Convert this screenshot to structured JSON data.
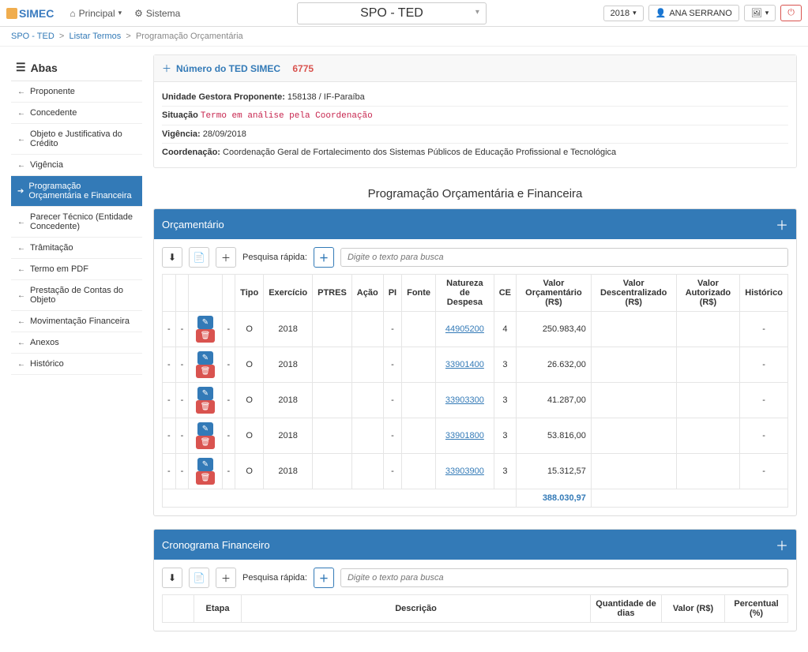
{
  "topbar": {
    "logo": "SIMEC",
    "nav": {
      "principal": "Principal",
      "sistema": "Sistema"
    },
    "title": "SPO - TED",
    "year": "2018",
    "user": "ANA SERRANO"
  },
  "breadcrumb": {
    "level1": "SPO - TED",
    "level2": "Listar Termos",
    "level3": "Programação Orçamentária"
  },
  "sidebar": {
    "title": "Abas",
    "items": [
      {
        "label": "Proponente",
        "active": false
      },
      {
        "label": "Concedente",
        "active": false
      },
      {
        "label": "Objeto e Justificativa do Crédito",
        "active": false
      },
      {
        "label": "Vigência",
        "active": false
      },
      {
        "label": "Programação Orçamentária e Financeira",
        "active": true
      },
      {
        "label": "Parecer Técnico (Entidade Concedente)",
        "active": false
      },
      {
        "label": "Trâmitação",
        "active": false
      },
      {
        "label": "Termo em PDF",
        "active": false
      },
      {
        "label": "Prestação de Contas do Objeto",
        "active": false
      },
      {
        "label": "Movimentação Financeira",
        "active": false
      },
      {
        "label": "Anexos",
        "active": false
      },
      {
        "label": "Histórico",
        "active": false
      }
    ]
  },
  "info": {
    "ted_label": "Número do TED SIMEC",
    "ted_number": "6775",
    "unidade_label": "Unidade Gestora Proponente:",
    "unidade_value": "158138 / IF-Paraíba",
    "situacao_label": "Situação",
    "situacao_value": "Termo em análise pela Coordenação",
    "vigencia_label": "Vigência:",
    "vigencia_value": "28/09/2018",
    "coord_label": "Coordenação:",
    "coord_value": "Coordenação Geral de Fortalecimento dos Sistemas Públicos de Educação Profissional e Tecnológica"
  },
  "section_title": "Programação Orçamentária e Financeira",
  "orcamentario": {
    "panel_title": "Orçamentário",
    "search_label": "Pesquisa rápida:",
    "search_placeholder": "Digite o texto para busca",
    "headers": {
      "tipo": "Tipo",
      "exercicio": "Exercício",
      "ptres": "PTRES",
      "acao": "Ação",
      "pi": "PI",
      "fonte": "Fonte",
      "natureza": "Natureza de Despesa",
      "ce": "CE",
      "valor_orc": "Valor Orçamentário (R$)",
      "valor_desc": "Valor Descentralizado (R$)",
      "valor_aut": "Valor Autorizado (R$)",
      "historico": "Histórico"
    },
    "rows": [
      {
        "tipo": "O",
        "exercicio": "2018",
        "natureza": "44905200",
        "ce": "4",
        "valor": "250.983,40"
      },
      {
        "tipo": "O",
        "exercicio": "2018",
        "natureza": "33901400",
        "ce": "3",
        "valor": "26.632,00"
      },
      {
        "tipo": "O",
        "exercicio": "2018",
        "natureza": "33903300",
        "ce": "3",
        "valor": "41.287,00"
      },
      {
        "tipo": "O",
        "exercicio": "2018",
        "natureza": "33901800",
        "ce": "3",
        "valor": "53.816,00"
      },
      {
        "tipo": "O",
        "exercicio": "2018",
        "natureza": "33903900",
        "ce": "3",
        "valor": "15.312,57"
      }
    ],
    "total": "388.030,97"
  },
  "cronograma": {
    "panel_title": "Cronograma Financeiro",
    "search_label": "Pesquisa rápida:",
    "search_placeholder": "Digite o texto para busca",
    "headers": {
      "etapa": "Etapa",
      "descricao": "Descrição",
      "qtd_dias": "Quantidade de dias",
      "valor": "Valor (R$)",
      "percentual": "Percentual (%)"
    }
  },
  "colors": {
    "primary": "#337ab7",
    "danger": "#d9534f",
    "warning": "#f0ad4e",
    "border": "#e5e5e5",
    "text": "#333333",
    "muted": "#888888"
  }
}
